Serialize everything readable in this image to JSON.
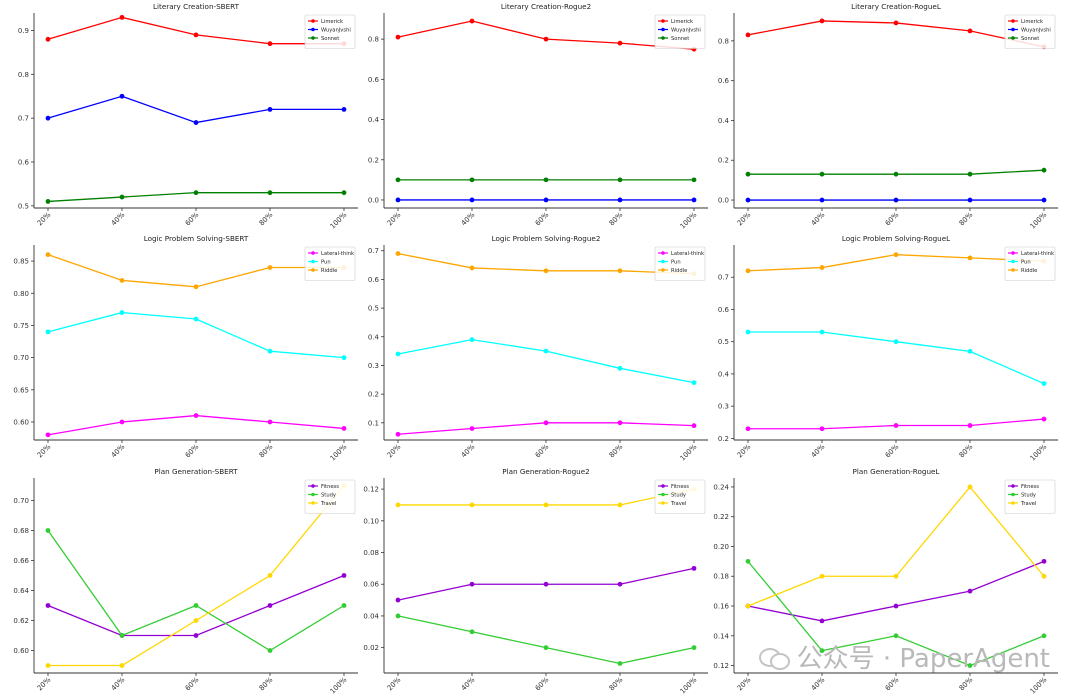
{
  "chart_data": [
    {
      "type": "line",
      "title": "Literary Creation-SBERT",
      "categories": [
        "20%",
        "40%",
        "60%",
        "80%",
        "100%"
      ],
      "ylim": [
        0.495,
        0.94
      ],
      "yticks": [
        "0.5",
        "0.6",
        "0.7",
        "0.8",
        "0.9"
      ],
      "legend": "top-right",
      "series": [
        {
          "name": "Limerick",
          "color": "#ff0000",
          "values": [
            0.88,
            0.93,
            0.89,
            0.87,
            0.87
          ]
        },
        {
          "name": "WuyanJvshi",
          "color": "#0000ff",
          "values": [
            0.7,
            0.75,
            0.69,
            0.72,
            0.72
          ]
        },
        {
          "name": "Sonnet",
          "color": "#008000",
          "values": [
            0.51,
            0.52,
            0.53,
            0.53,
            0.53
          ]
        }
      ]
    },
    {
      "type": "line",
      "title": "Literary Creation-Rogue2",
      "categories": [
        "20%",
        "40%",
        "60%",
        "80%",
        "100%"
      ],
      "ylim": [
        -0.04,
        0.93
      ],
      "yticks": [
        "0.0",
        "0.2",
        "0.4",
        "0.6",
        "0.8"
      ],
      "legend": "top-right",
      "series": [
        {
          "name": "Limerick",
          "color": "#ff0000",
          "values": [
            0.81,
            0.89,
            0.8,
            0.78,
            0.75
          ]
        },
        {
          "name": "WuyanJvshi",
          "color": "#0000ff",
          "values": [
            0.0,
            0.0,
            0.0,
            0.0,
            0.0
          ]
        },
        {
          "name": "Sonnet",
          "color": "#008000",
          "values": [
            0.1,
            0.1,
            0.1,
            0.1,
            0.1
          ]
        }
      ]
    },
    {
      "type": "line",
      "title": "Literary Creation-RogueL",
      "categories": [
        "20%",
        "40%",
        "60%",
        "80%",
        "100%"
      ],
      "ylim": [
        -0.04,
        0.94
      ],
      "yticks": [
        "0.0",
        "0.2",
        "0.4",
        "0.6",
        "0.8"
      ],
      "legend": "top-right",
      "series": [
        {
          "name": "Limerick",
          "color": "#ff0000",
          "values": [
            0.83,
            0.9,
            0.89,
            0.85,
            0.77
          ]
        },
        {
          "name": "WuyanJvshi",
          "color": "#0000ff",
          "values": [
            0.0,
            0.0,
            0.0,
            0.0,
            0.0
          ]
        },
        {
          "name": "Sonnet",
          "color": "#008000",
          "values": [
            0.13,
            0.13,
            0.13,
            0.13,
            0.15
          ]
        }
      ]
    },
    {
      "type": "line",
      "title": "Logic Problem Solving-SBERT",
      "categories": [
        "20%",
        "40%",
        "60%",
        "80%",
        "100%"
      ],
      "ylim": [
        0.572,
        0.875
      ],
      "yticks": [
        "0.60",
        "0.65",
        "0.70",
        "0.75",
        "0.80",
        "0.85"
      ],
      "legend": "top-right",
      "series": [
        {
          "name": "Lateral-think",
          "color": "#ff00ff",
          "values": [
            0.58,
            0.6,
            0.61,
            0.6,
            0.59
          ]
        },
        {
          "name": "Pun",
          "color": "#00ffff",
          "values": [
            0.74,
            0.77,
            0.76,
            0.71,
            0.7
          ]
        },
        {
          "name": "Riddle",
          "color": "#ffa500",
          "values": [
            0.86,
            0.82,
            0.81,
            0.84,
            0.84
          ]
        }
      ]
    },
    {
      "type": "line",
      "title": "Logic Problem Solving-Rogue2",
      "categories": [
        "20%",
        "40%",
        "60%",
        "80%",
        "100%"
      ],
      "ylim": [
        0.04,
        0.72
      ],
      "yticks": [
        "0.1",
        "0.2",
        "0.3",
        "0.4",
        "0.5",
        "0.6",
        "0.7"
      ],
      "legend": "top-right",
      "series": [
        {
          "name": "Lateral-think",
          "color": "#ff00ff",
          "values": [
            0.06,
            0.08,
            0.1,
            0.1,
            0.09
          ]
        },
        {
          "name": "Pun",
          "color": "#00ffff",
          "values": [
            0.34,
            0.39,
            0.35,
            0.29,
            0.24
          ]
        },
        {
          "name": "Riddle",
          "color": "#ffa500",
          "values": [
            0.69,
            0.64,
            0.63,
            0.63,
            0.62
          ]
        }
      ]
    },
    {
      "type": "line",
      "title": "Logic Problem Solving-RogueL",
      "categories": [
        "20%",
        "40%",
        "60%",
        "80%",
        "100%"
      ],
      "ylim": [
        0.195,
        0.8
      ],
      "yticks": [
        "0.2",
        "0.3",
        "0.4",
        "0.5",
        "0.6",
        "0.7"
      ],
      "legend": "top-right",
      "series": [
        {
          "name": "Lateral-think",
          "color": "#ff00ff",
          "values": [
            0.23,
            0.23,
            0.24,
            0.24,
            0.26
          ]
        },
        {
          "name": "Pun",
          "color": "#00ffff",
          "values": [
            0.53,
            0.53,
            0.5,
            0.47,
            0.37
          ]
        },
        {
          "name": "Riddle",
          "color": "#ffa500",
          "values": [
            0.72,
            0.73,
            0.77,
            0.76,
            0.75
          ]
        }
      ]
    },
    {
      "type": "line",
      "title": "Plan Generation-SBERT",
      "categories": [
        "20%",
        "40%",
        "60%",
        "80%",
        "100%"
      ],
      "ylim": [
        0.585,
        0.715
      ],
      "yticks": [
        "0.60",
        "0.62",
        "0.64",
        "0.66",
        "0.68",
        "0.70"
      ],
      "legend": "top-right",
      "series": [
        {
          "name": "Fitness",
          "color": "#9400d3",
          "values": [
            0.63,
            0.61,
            0.61,
            0.63,
            0.65
          ]
        },
        {
          "name": "Study",
          "color": "#32cd32",
          "values": [
            0.68,
            0.61,
            0.63,
            0.6,
            0.63
          ]
        },
        {
          "name": "Travel",
          "color": "#ffd700",
          "values": [
            0.59,
            0.59,
            0.62,
            0.65,
            0.71
          ]
        }
      ]
    },
    {
      "type": "line",
      "title": "Plan Generation-Rogue2",
      "categories": [
        "20%",
        "40%",
        "60%",
        "80%",
        "100%"
      ],
      "ylim": [
        0.004,
        0.127
      ],
      "yticks": [
        "0.02",
        "0.04",
        "0.06",
        "0.08",
        "0.10",
        "0.12"
      ],
      "legend": "top-right",
      "series": [
        {
          "name": "Fitness",
          "color": "#9400d3",
          "values": [
            0.05,
            0.06,
            0.06,
            0.06,
            0.07
          ]
        },
        {
          "name": "Study",
          "color": "#32cd32",
          "values": [
            0.04,
            0.03,
            0.02,
            0.01,
            0.02
          ]
        },
        {
          "name": "Travel",
          "color": "#ffd700",
          "values": [
            0.11,
            0.11,
            0.11,
            0.11,
            0.12
          ]
        }
      ]
    },
    {
      "type": "line",
      "title": "Plan Generation-RogueL",
      "categories": [
        "20%",
        "40%",
        "60%",
        "80%",
        "100%"
      ],
      "ylim": [
        0.115,
        0.246
      ],
      "yticks": [
        "0.12",
        "0.14",
        "0.16",
        "0.18",
        "0.20",
        "0.22",
        "0.24"
      ],
      "legend": "top-right",
      "series": [
        {
          "name": "Fitness",
          "color": "#9400d3",
          "values": [
            0.16,
            0.15,
            0.16,
            0.17,
            0.19
          ]
        },
        {
          "name": "Study",
          "color": "#32cd32",
          "values": [
            0.19,
            0.13,
            0.14,
            0.12,
            0.14
          ]
        },
        {
          "name": "Travel",
          "color": "#ffd700",
          "values": [
            0.16,
            0.18,
            0.18,
            0.24,
            0.18
          ]
        }
      ]
    }
  ],
  "watermark": {
    "text": "公众号 · PaperAgent"
  }
}
